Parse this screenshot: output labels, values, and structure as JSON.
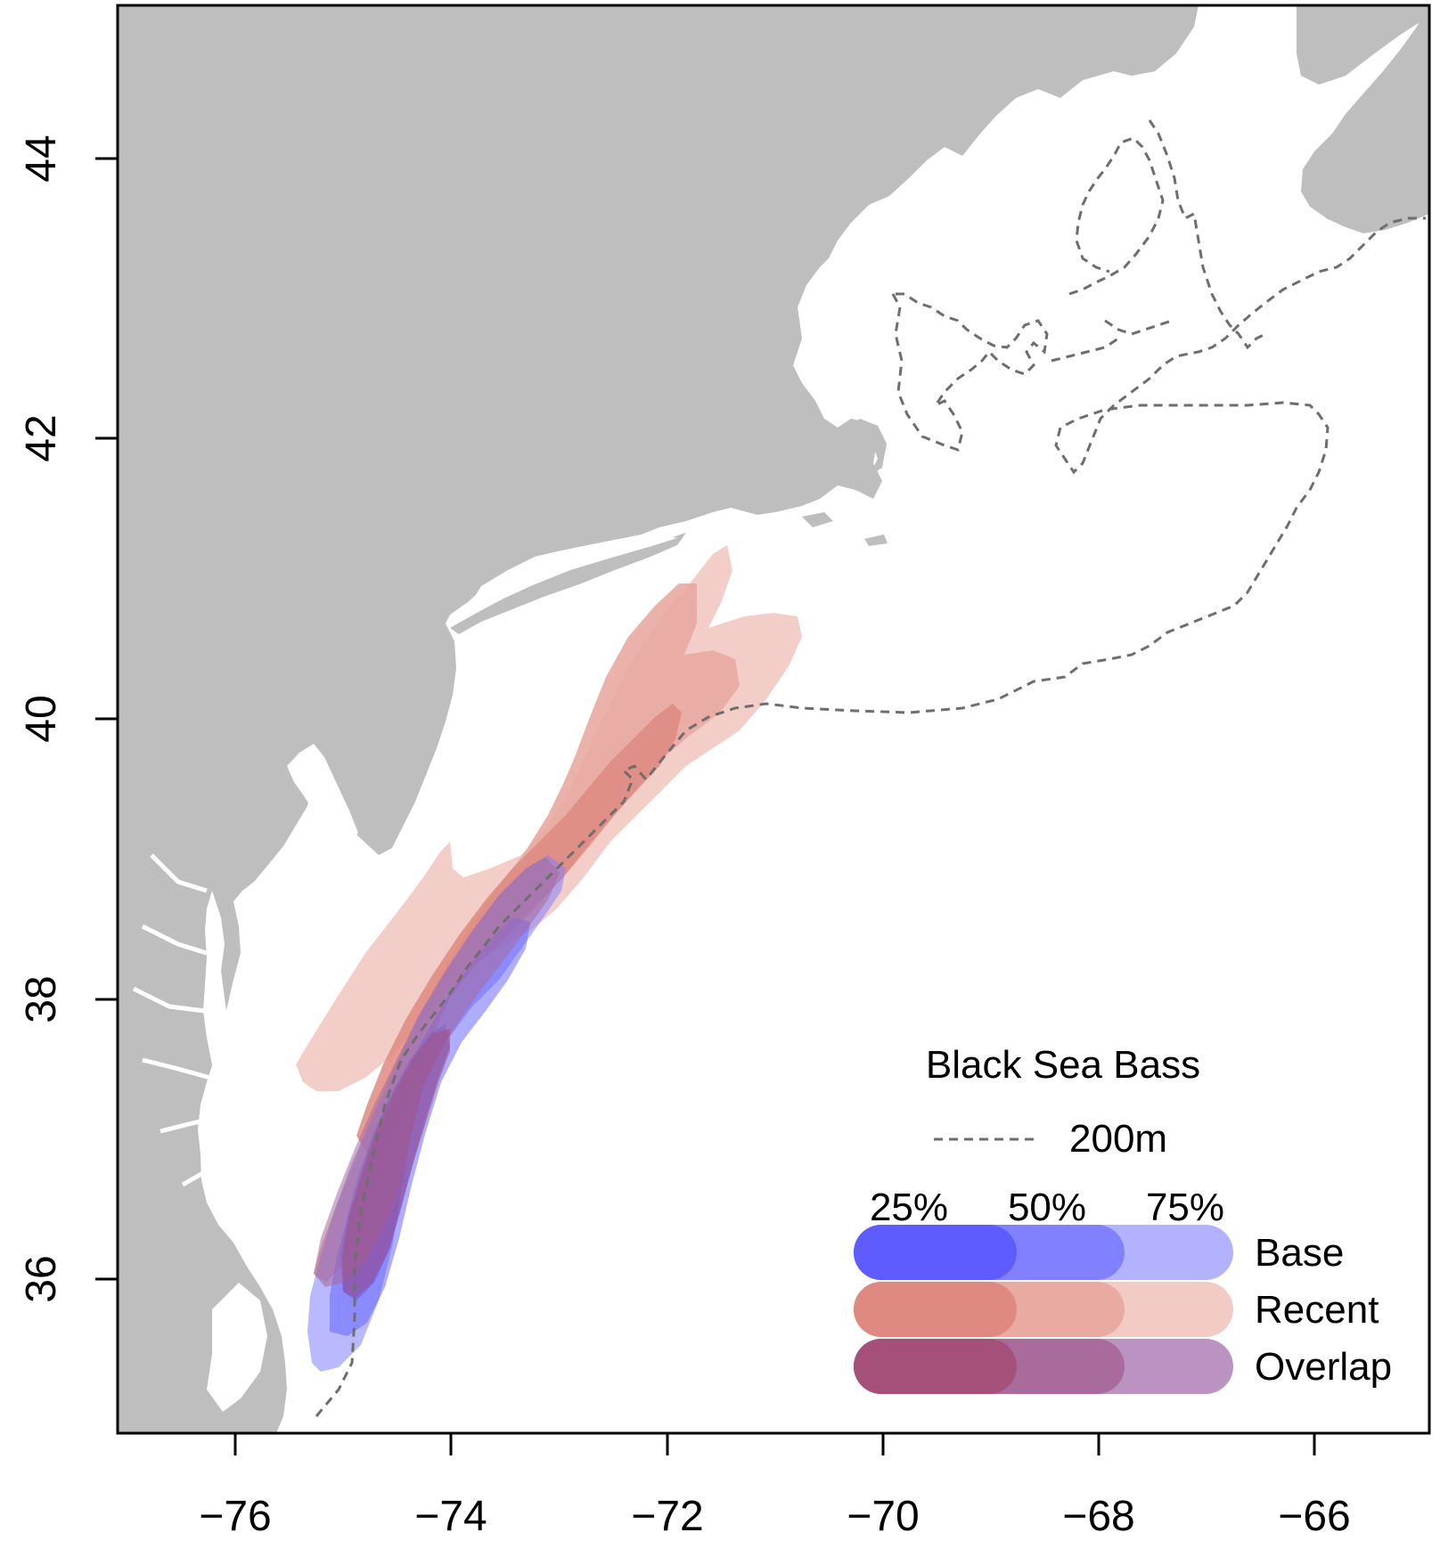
{
  "map": {
    "region": "US Northeast Continental Shelf",
    "land_color": "#bebebe",
    "water_color": "#ffffff",
    "isobath_label": "200m",
    "isobath_color": "#6e6e6e"
  },
  "axes": {
    "x_ticks": [
      "−76",
      "−74",
      "−72",
      "−70",
      "−68",
      "−66"
    ],
    "y_ticks": [
      "36",
      "38",
      "40",
      "42",
      "44"
    ]
  },
  "legend": {
    "title": "Black Sea Bass",
    "line_label": "200m",
    "percent_labels": [
      "25%",
      "50%",
      "75%"
    ],
    "rows": [
      {
        "label": "Base",
        "colors": [
          "#5e5cff",
          "#8180ff",
          "#b3b2ff"
        ]
      },
      {
        "label": "Recent",
        "colors": [
          "#de8a80",
          "#e8aaa1",
          "#f2cbc5"
        ]
      },
      {
        "label": "Overlap",
        "colors": [
          "#a55079",
          "#a86b9c",
          "#bb93c3"
        ]
      }
    ]
  }
}
